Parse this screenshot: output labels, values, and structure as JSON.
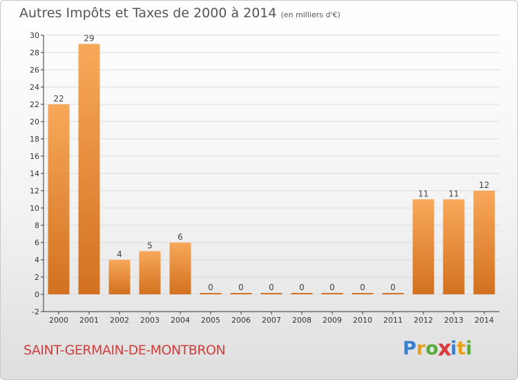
{
  "chart_data": {
    "type": "bar",
    "title": "Autres Impôts et Taxes de 2000 à 2014",
    "subtitle": "(en milliers d'€)",
    "categories": [
      "2000",
      "2001",
      "2002",
      "2003",
      "2004",
      "2005",
      "2006",
      "2007",
      "2008",
      "2009",
      "2010",
      "2011",
      "2012",
      "2013",
      "2014"
    ],
    "values": [
      22,
      29,
      4,
      5,
      6,
      0,
      0,
      0,
      0,
      0,
      0,
      0,
      11,
      11,
      12
    ],
    "ylim": [
      -2,
      30
    ],
    "yticks": [
      -2,
      0,
      2,
      4,
      6,
      8,
      10,
      12,
      14,
      16,
      18,
      20,
      22,
      24,
      26,
      28,
      30
    ],
    "grid": true,
    "xlabel": "",
    "ylabel": ""
  },
  "commune": "SAINT-GERMAIN-DE-MONTBRON",
  "brand": {
    "letters": [
      "P",
      "r",
      "o",
      "x",
      "i",
      "t",
      "i"
    ],
    "colors": [
      "#3a7fd0",
      "#e8a019",
      "#5aaa3c",
      "#d93a3a",
      "#3a7fd0",
      "#e8a019",
      "#5aaa3c"
    ]
  },
  "colors": {
    "bar_light": "#f8a85a",
    "bar_dark": "#d2711f",
    "grid": "#dcdcdc",
    "axis": "#333333"
  }
}
